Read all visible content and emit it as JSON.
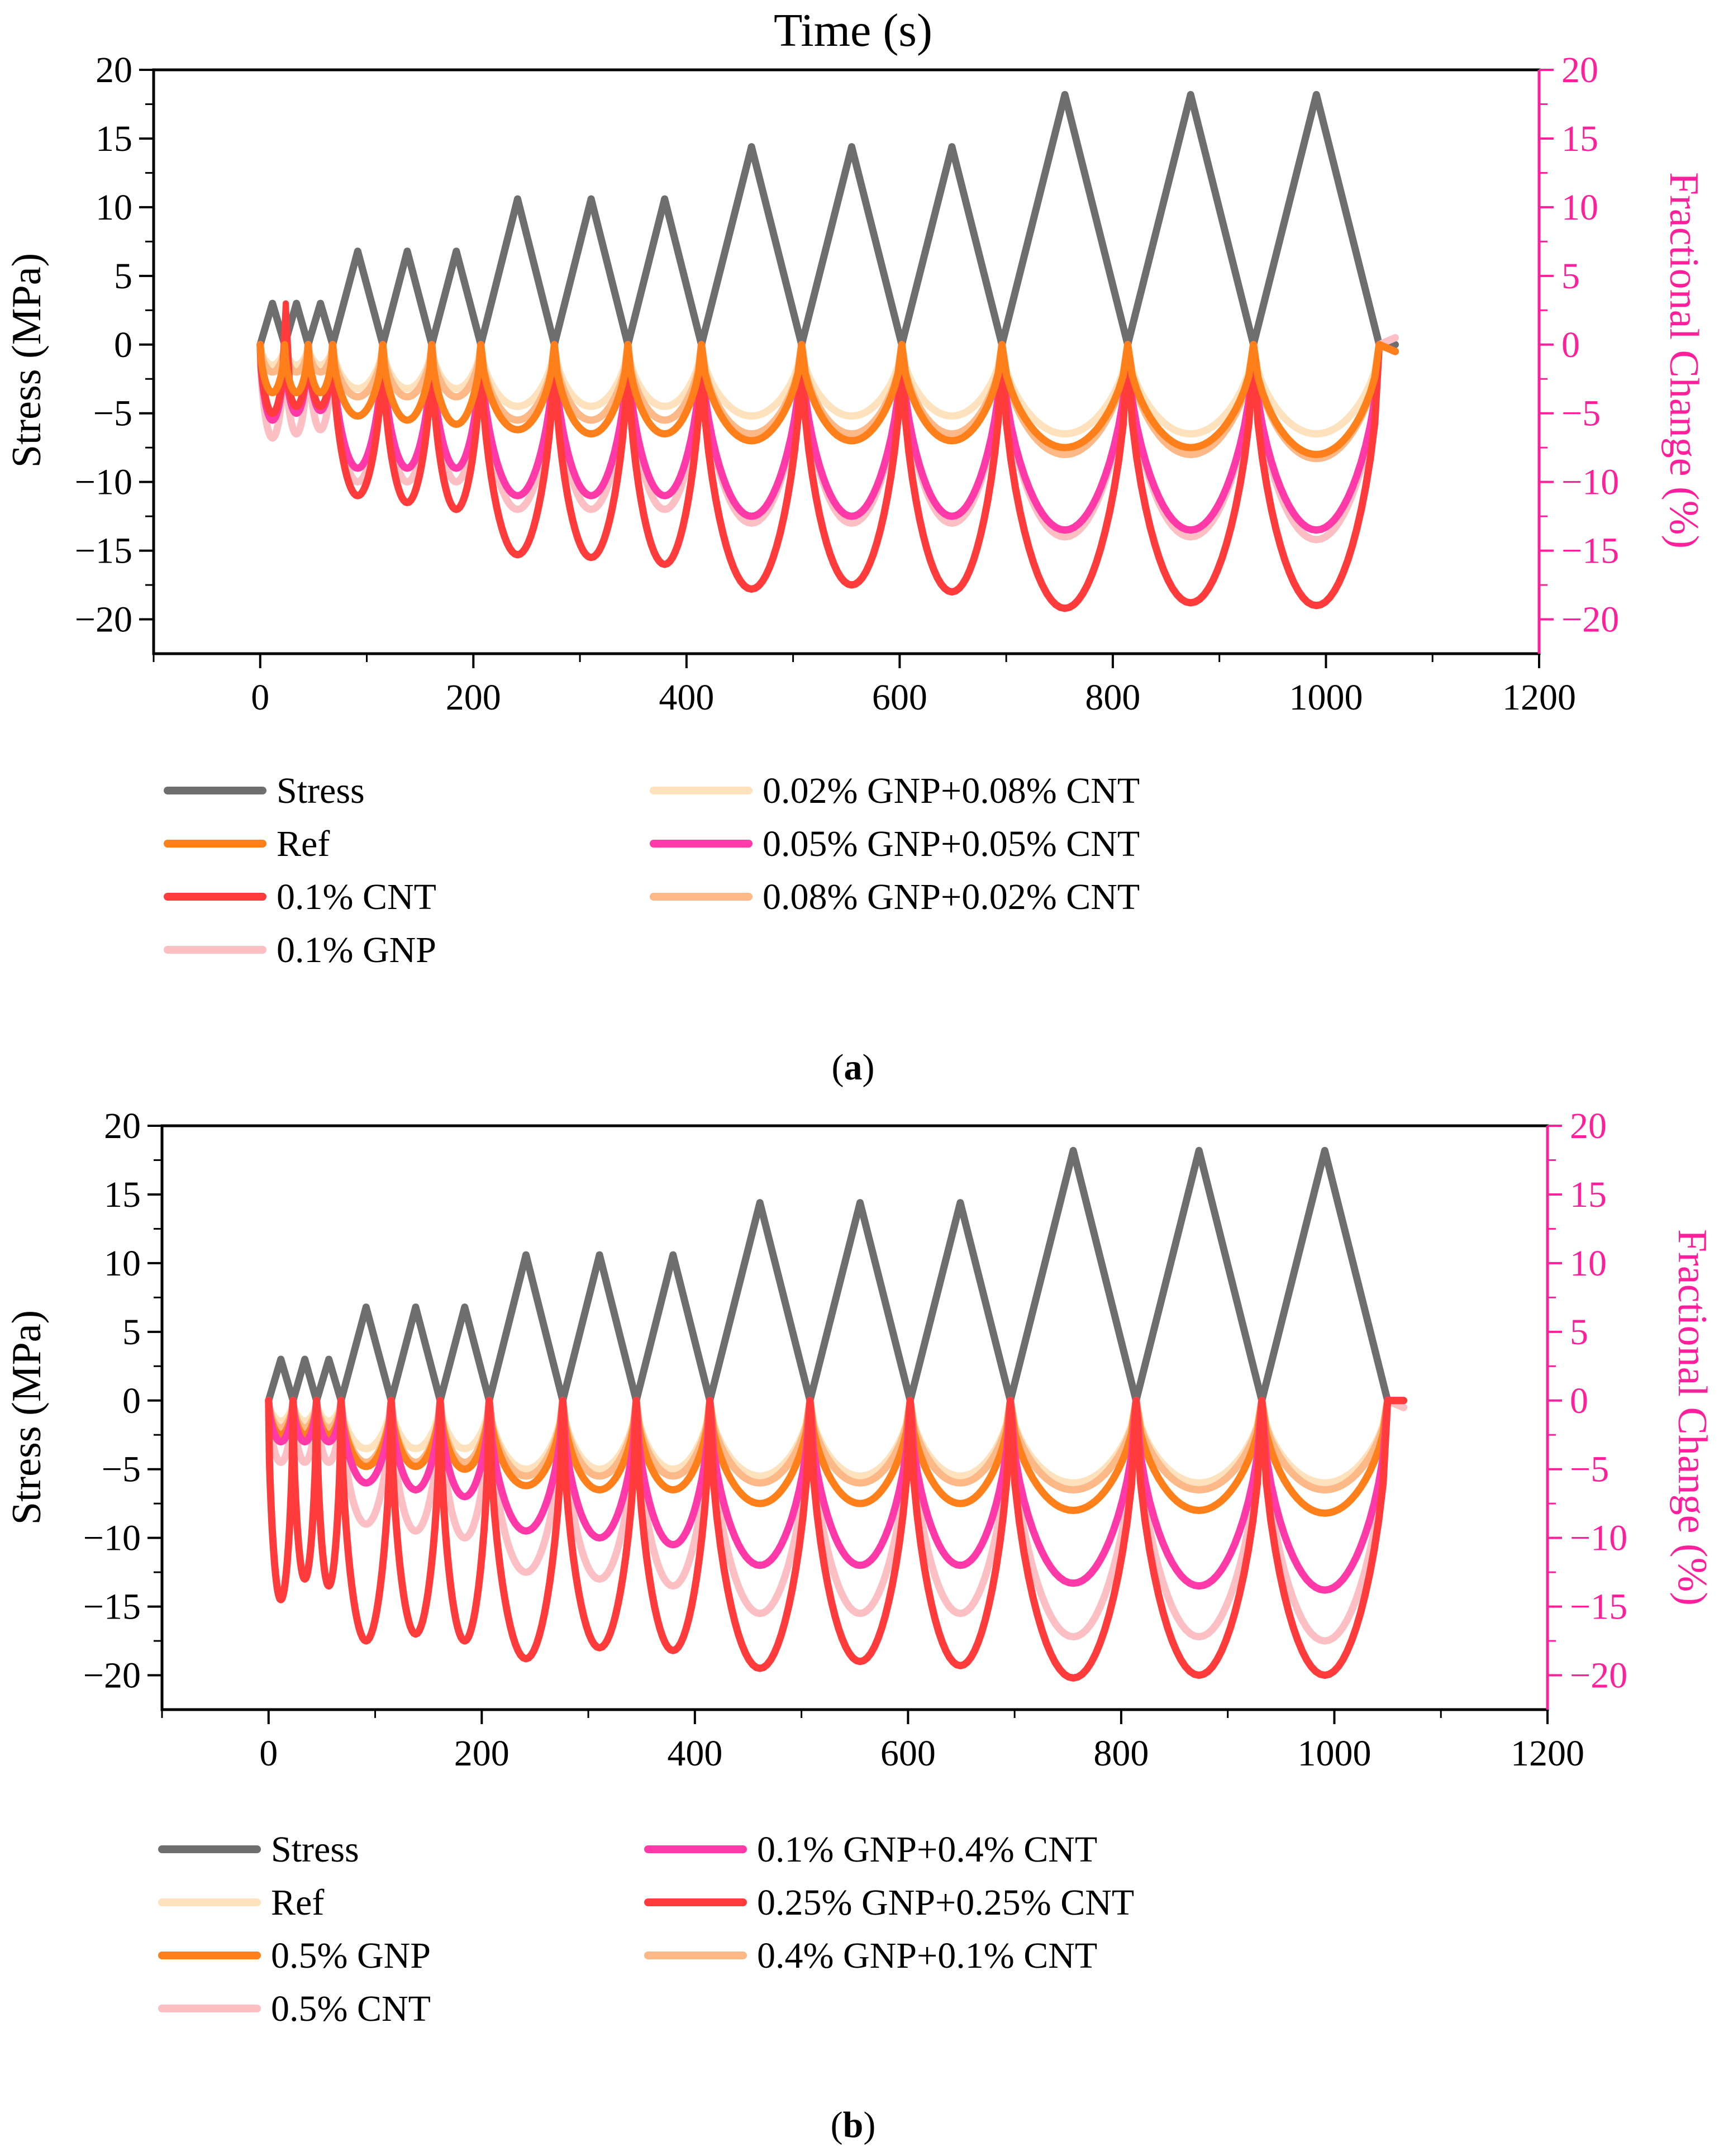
{
  "colors": {
    "axis": "#000000",
    "right_axis": "#ff1f9a",
    "Stress": "#6e6e6e",
    "Ref_orange": "#ff7f1a",
    "Ref_pale": "#fde2bd",
    "CNT_red": "#ff3b3b",
    "GNP_pink": "#fbbfc4",
    "mix_pale": "#fde2bd",
    "mix_magenta": "#ff3aa8",
    "mix_peach": "#fcb987"
  },
  "chart_data": [
    {
      "type": "line",
      "panel_label": "a",
      "title": "Time (s)",
      "ylabel": "Stress (MPa)",
      "y2label": "Fractional Change (%)",
      "xlim": [
        -100,
        1200
      ],
      "ylim": [
        -22.5,
        20
      ],
      "y2lim": [
        -22.5,
        20
      ],
      "xticks": [
        0,
        200,
        400,
        600,
        800,
        1000,
        1200
      ],
      "xtick_labels": [
        "0",
        "200",
        "400",
        "600",
        "800",
        "1000",
        "1200"
      ],
      "yticks": [
        -20,
        -15,
        -10,
        -5,
        0,
        5,
        10,
        15,
        20
      ],
      "ytick_labels": [
        "−20",
        "−15",
        "−10",
        "−5",
        "0",
        "5",
        "10",
        "15",
        "20"
      ],
      "y2tick_labels": [
        "−20",
        "−15",
        "−10",
        "−5",
        "0",
        "5",
        "10",
        "15",
        "20"
      ],
      "cycle_boundaries": [
        0,
        23,
        45,
        68,
        115,
        161,
        207,
        276,
        345,
        414,
        508,
        602,
        696,
        814,
        932,
        1050
      ],
      "stress_peaks": [
        3,
        3,
        3,
        6.8,
        6.8,
        6.8,
        10.6,
        10.6,
        10.6,
        14.4,
        14.4,
        14.4,
        18.2,
        18.2,
        18.2
      ],
      "end_time": 1065,
      "series": [
        {
          "name": "Stress",
          "color_key": "Stress",
          "kind": "stress",
          "start_value": 0,
          "end_value": 0
        },
        {
          "name": "0.02% GNP+0.08% CNT",
          "color_key": "mix_pale",
          "kind": "fc",
          "mins": [
            -1.5,
            -1.5,
            -1.5,
            -3.2,
            -3.2,
            -3.2,
            -4.5,
            -4.5,
            -4.5,
            -5.2,
            -5.2,
            -5.2,
            -6.5,
            -6.5,
            -6.5
          ],
          "end_value": -0.5
        },
        {
          "name": "0.08% GNP+0.02% CNT",
          "color_key": "mix_peach",
          "kind": "fc",
          "mins": [
            -2,
            -2,
            -2,
            -3.8,
            -3.8,
            -3.8,
            -5.5,
            -5.5,
            -5.5,
            -6.5,
            -6.5,
            -6.5,
            -8,
            -8,
            -8.3
          ],
          "end_value": -0.5
        },
        {
          "name": "0.1% GNP",
          "color_key": "GNP_pink",
          "kind": "fc",
          "mins": [
            -6.8,
            -6.5,
            -6.2,
            -10,
            -10,
            -10,
            -12,
            -12,
            -12,
            -13,
            -13,
            -13,
            -14,
            -14,
            -14.2
          ],
          "end_value": 0.5
        },
        {
          "name": "0.05% GNP+0.05% CNT",
          "color_key": "mix_magenta",
          "kind": "fc",
          "mins": [
            -5.5,
            -5,
            -4.8,
            -9,
            -9,
            -9,
            -11,
            -11,
            -11,
            -12.5,
            -12.5,
            -12.5,
            -13.5,
            -13.5,
            -13.5
          ],
          "end_value": -0.5
        },
        {
          "name": "0.1% CNT",
          "color_key": "CNT_red",
          "kind": "fc",
          "mins": [
            -5,
            -4.5,
            -4.5,
            -11,
            -11.5,
            -12,
            -15.3,
            -15.5,
            -16,
            -17.8,
            -17.5,
            -18,
            -19.2,
            -18.8,
            -19
          ],
          "end_value": -0.5,
          "spike": [
            24,
            3
          ]
        },
        {
          "name": "Ref",
          "color_key": "Ref_orange",
          "kind": "fc",
          "mins": [
            -3.5,
            -3.5,
            -3.5,
            -5.2,
            -5.5,
            -5.8,
            -6.2,
            -6.5,
            -6.5,
            -7,
            -7,
            -7,
            -7.5,
            -7.5,
            -8
          ],
          "end_value": -0.5
        }
      ],
      "legend": [
        {
          "name": "Stress",
          "color_key": "Stress"
        },
        {
          "name": "Ref",
          "color_key": "Ref_orange"
        },
        {
          "name": "0.1% CNT",
          "color_key": "CNT_red"
        },
        {
          "name": "0.1% GNP",
          "color_key": "GNP_pink"
        },
        {
          "name": "0.02% GNP+0.08% CNT",
          "color_key": "mix_pale"
        },
        {
          "name": "0.05% GNP+0.05% CNT",
          "color_key": "mix_magenta"
        },
        {
          "name": "0.08% GNP+0.02% CNT",
          "color_key": "mix_peach"
        }
      ]
    },
    {
      "type": "line",
      "panel_label": "b",
      "title": "",
      "ylabel": "Stress (MPa)",
      "y2label": "Fractional Change (%)",
      "xlim": [
        -100,
        1200
      ],
      "ylim": [
        -22.5,
        20
      ],
      "y2lim": [
        -22.5,
        20
      ],
      "xticks": [
        0,
        200,
        400,
        600,
        800,
        1000,
        1200
      ],
      "xtick_labels": [
        "0",
        "200",
        "400",
        "600",
        "800",
        "1000",
        "1200"
      ],
      "yticks": [
        -20,
        -15,
        -10,
        -5,
        0,
        5,
        10,
        15,
        20
      ],
      "ytick_labels": [
        "−20",
        "−15",
        "−10",
        "−5",
        "0",
        "5",
        "10",
        "15",
        "20"
      ],
      "y2tick_labels": [
        "−20",
        "−15",
        "−10",
        "−5",
        "0",
        "5",
        "10",
        "15",
        "20"
      ],
      "cycle_boundaries": [
        0,
        23,
        45,
        68,
        115,
        161,
        207,
        276,
        345,
        414,
        508,
        602,
        696,
        814,
        932,
        1050
      ],
      "stress_peaks": [
        3,
        3,
        3,
        6.8,
        6.8,
        6.8,
        10.6,
        10.6,
        10.6,
        14.4,
        14.4,
        14.4,
        18.2,
        18.2,
        18.2
      ],
      "end_time": 1065,
      "series": [
        {
          "name": "Stress",
          "color_key": "Stress",
          "kind": "stress",
          "start_value": 0,
          "end_value": 0
        },
        {
          "name": "Ref",
          "color_key": "Ref_pale",
          "kind": "fc",
          "mins": [
            -1.5,
            -1.5,
            -1.5,
            -3.5,
            -3.5,
            -3.5,
            -5,
            -5,
            -5,
            -5.5,
            -5.5,
            -5.5,
            -6,
            -6,
            -6
          ],
          "end_value": -0.5
        },
        {
          "name": "0.4% GNP+0.1% CNT",
          "color_key": "mix_peach",
          "kind": "fc",
          "mins": [
            -2,
            -2,
            -2,
            -4.5,
            -4.5,
            -4.5,
            -5.5,
            -5.5,
            -5.5,
            -6,
            -6,
            -6,
            -6.5,
            -6.5,
            -6.5
          ],
          "end_value": -0.5
        },
        {
          "name": "0.5% GNP",
          "color_key": "Ref_orange",
          "kind": "fc",
          "mins": [
            -2.5,
            -2.5,
            -2.5,
            -4.8,
            -4.8,
            -5,
            -6.2,
            -6.5,
            -6.5,
            -7.5,
            -7.5,
            -7.5,
            -8,
            -8,
            -8.2
          ],
          "end_value": -0.5
        },
        {
          "name": "0.5% CNT",
          "color_key": "GNP_pink",
          "kind": "fc",
          "mins": [
            -4.5,
            -4.5,
            -4.5,
            -9,
            -9.5,
            -10,
            -12.5,
            -13,
            -13.5,
            -15.5,
            -15.5,
            -15.5,
            -17.2,
            -17.2,
            -17.5
          ],
          "end_value": -0.5
        },
        {
          "name": "0.1% GNP+0.4% CNT",
          "color_key": "mix_magenta",
          "kind": "fc",
          "mins": [
            -3,
            -3,
            -3,
            -6,
            -6.5,
            -7,
            -9.5,
            -10,
            -10.5,
            -12,
            -12,
            -12,
            -13.3,
            -13.5,
            -13.8
          ],
          "end_value": 0
        },
        {
          "name": "0.25% GNP+0.25% CNT",
          "color_key": "CNT_red",
          "kind": "fc",
          "mins": [
            -14.5,
            -13,
            -13.5,
            -17.5,
            -17,
            -17.5,
            -18.8,
            -18,
            -18.2,
            -19.5,
            -19,
            -19.3,
            -20.2,
            -20,
            -20
          ],
          "end_value": 0
        }
      ],
      "legend": [
        {
          "name": "Stress",
          "color_key": "Stress"
        },
        {
          "name": "Ref",
          "color_key": "Ref_pale"
        },
        {
          "name": "0.5% GNP",
          "color_key": "Ref_orange"
        },
        {
          "name": "0.5% CNT",
          "color_key": "GNP_pink"
        },
        {
          "name": "0.1% GNP+0.4% CNT",
          "color_key": "mix_magenta"
        },
        {
          "name": "0.25% GNP+0.25% CNT",
          "color_key": "CNT_red"
        },
        {
          "name": "0.4% GNP+0.1% CNT",
          "color_key": "mix_peach"
        }
      ]
    }
  ]
}
